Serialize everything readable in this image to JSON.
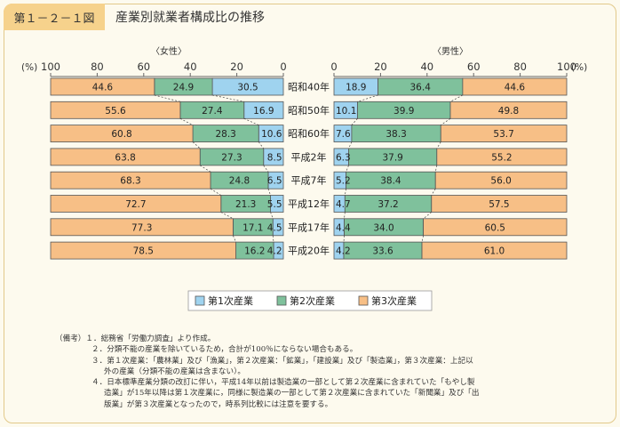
{
  "header": {
    "figure_no": "第１－２－１図",
    "title": "産業別就業者構成比の推移"
  },
  "chart_data": {
    "type": "bar",
    "orientation": "horizontal-butterfly",
    "panels": {
      "left": "〈女性〉",
      "right": "〈男性〉"
    },
    "unit_label": "(%)",
    "axis_ticks": [
      "100",
      "80",
      "60",
      "40",
      "20",
      "0"
    ],
    "axis_ticks_right": [
      "0",
      "20",
      "40",
      "60",
      "80",
      "100"
    ],
    "xlim": [
      0,
      100
    ],
    "categories": [
      "昭和40年",
      "昭和50年",
      "昭和60年",
      "平成2年",
      "平成7年",
      "平成12年",
      "平成17年",
      "平成20年"
    ],
    "series": [
      {
        "name": "第1次産業",
        "color": "#9fd3ef",
        "female": [
          30.5,
          16.9,
          10.6,
          8.5,
          6.5,
          5.5,
          4.5,
          4.2
        ],
        "male": [
          18.9,
          10.1,
          7.6,
          6.3,
          5.2,
          4.7,
          4.4,
          4.2
        ]
      },
      {
        "name": "第2次産業",
        "color": "#7fc19c",
        "female": [
          24.9,
          27.4,
          28.3,
          27.3,
          24.8,
          21.3,
          17.1,
          16.2
        ],
        "male": [
          36.4,
          39.9,
          38.3,
          37.9,
          38.4,
          37.2,
          34.0,
          33.6
        ]
      },
      {
        "name": "第3次産業",
        "color": "#f7bf86",
        "female": [
          44.6,
          55.6,
          60.8,
          63.8,
          68.3,
          72.7,
          77.3,
          78.5
        ],
        "male": [
          44.6,
          49.8,
          53.7,
          55.2,
          56.0,
          57.5,
          60.5,
          61.0
        ]
      }
    ],
    "legend_position": "bottom-center"
  },
  "notes": [
    "（備考）１．総務省「労働力調査」より作成。",
    "２．分類不能の産業を除いているため，合計が100％にならない場合もある。",
    "３．第１次産業：「農林業」及び「漁業」，第２次産業：「鉱業」，「建設業」及び「製造業」，第３次産業：上記以",
    "外の産業（分類不能の産業は含まない）。",
    "４．日本標準産業分類の改訂に伴い，平成14年以前は製造業の一部として第２次産業に含まれていた「もやし製",
    "造業」が15年以降は第１次産業に，同様に製造業の一部として第２次産業に含まれていた「新聞業」及び「出",
    "版業」が第３次産業となったので，時系列比較には注意を要する。"
  ]
}
